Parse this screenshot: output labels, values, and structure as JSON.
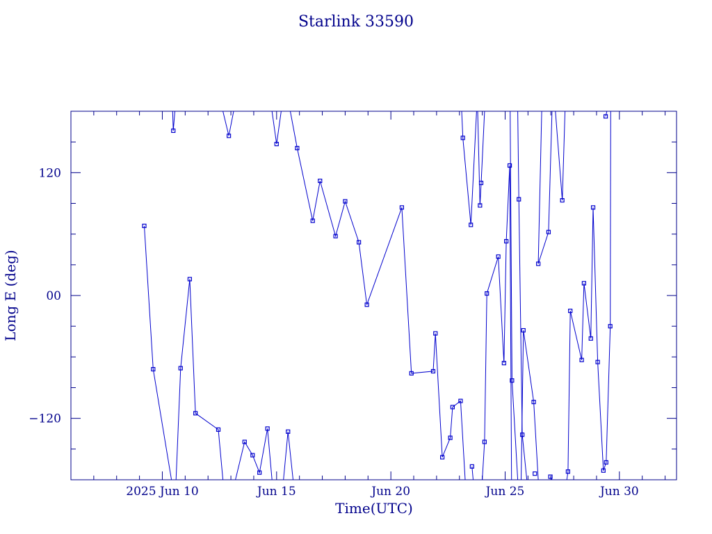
{
  "chart_data": {
    "type": "line",
    "title": "Starlink 33590",
    "xlabel": "Time(UTC)",
    "ylabel": "Long E (deg)",
    "x_units": "days (June 2025)",
    "xlim": [
      6.0,
      32.5
    ],
    "ylim": [
      -180,
      180
    ],
    "x_ticks": [
      {
        "x": 10,
        "label": "2025 Jun 10"
      },
      {
        "x": 15,
        "label": "Jun 15"
      },
      {
        "x": 20,
        "label": "Jun 20"
      },
      {
        "x": 25,
        "label": "Jun 25"
      },
      {
        "x": 30,
        "label": "Jun 30"
      }
    ],
    "y_ticks": [
      {
        "y": 120,
        "label": "120"
      },
      {
        "y": 0,
        "label": "00"
      },
      {
        "y": -120,
        "label": "−120"
      }
    ],
    "color": "#0000cd",
    "series": [
      {
        "values": [
          [
            9.21,
            68
          ],
          [
            9.6,
            -72
          ],
          [
            10.4,
            -180
          ]
        ]
      },
      {
        "values": [
          [
            10.45,
            180
          ],
          [
            10.48,
            161
          ],
          [
            10.55,
            180
          ]
        ]
      },
      {
        "values": [
          [
            10.6,
            -180
          ],
          [
            10.8,
            -71
          ],
          [
            11.2,
            16
          ],
          [
            11.45,
            -115
          ],
          [
            12.45,
            -131
          ],
          [
            12.65,
            -180
          ]
        ]
      },
      {
        "values": [
          [
            12.65,
            180
          ],
          [
            12.91,
            156
          ],
          [
            13.12,
            180
          ]
        ]
      },
      {
        "values": [
          [
            13.2,
            -180
          ],
          [
            13.6,
            -143
          ],
          [
            13.95,
            -156
          ],
          [
            14.25,
            -173
          ],
          [
            14.6,
            -130
          ],
          [
            14.8,
            -180
          ]
        ]
      },
      {
        "values": [
          [
            14.8,
            180
          ],
          [
            15.0,
            148
          ],
          [
            15.2,
            180
          ]
        ]
      },
      {
        "values": [
          [
            15.3,
            -180
          ],
          [
            15.5,
            -133
          ],
          [
            15.72,
            -180
          ]
        ]
      },
      {
        "values": [
          [
            15.6,
            180
          ],
          [
            15.9,
            144
          ],
          [
            16.58,
            73
          ],
          [
            16.9,
            112
          ],
          [
            17.58,
            58
          ],
          [
            18.0,
            92
          ],
          [
            18.6,
            52
          ],
          [
            18.95,
            -9
          ],
          [
            20.48,
            86
          ],
          [
            20.9,
            -76
          ],
          [
            21.85,
            -74
          ],
          [
            21.95,
            -37
          ],
          [
            22.25,
            -158
          ],
          [
            22.6,
            -139
          ],
          [
            22.7,
            -109
          ],
          [
            23.05,
            -103
          ],
          [
            23.25,
            -180
          ]
        ]
      },
      {
        "values": [
          [
            23.1,
            180
          ],
          [
            23.15,
            154
          ],
          [
            23.5,
            69
          ],
          [
            23.75,
            180
          ]
        ]
      },
      {
        "values": [
          [
            23.55,
            -167
          ],
          [
            23.6,
            -180
          ]
        ]
      },
      {
        "values": [
          [
            23.8,
            180
          ],
          [
            23.9,
            88
          ],
          [
            23.95,
            110
          ],
          [
            24.1,
            180
          ]
        ]
      },
      {
        "values": [
          [
            24.0,
            -180
          ],
          [
            24.1,
            -143
          ],
          [
            24.2,
            2
          ],
          [
            24.7,
            38
          ],
          [
            24.95,
            -66
          ],
          [
            25.05,
            53
          ],
          [
            25.2,
            127
          ],
          [
            25.28,
            -180
          ]
        ]
      },
      {
        "values": [
          [
            25.22,
            180
          ],
          [
            25.3,
            -83
          ],
          [
            25.55,
            -180
          ]
        ]
      },
      {
        "values": [
          [
            25.55,
            180
          ],
          [
            25.6,
            94
          ],
          [
            25.75,
            -136
          ],
          [
            25.95,
            -180
          ]
        ]
      },
      {
        "values": [
          [
            25.7,
            -180
          ],
          [
            25.8,
            -34
          ],
          [
            26.25,
            -104
          ],
          [
            26.45,
            -180
          ]
        ]
      },
      {
        "values": [
          [
            26.6,
            180
          ],
          [
            26.45,
            31
          ],
          [
            26.9,
            62
          ],
          [
            27.05,
            180
          ]
        ]
      },
      {
        "values": [
          [
            26.98,
            -177
          ],
          [
            27.05,
            -180
          ]
        ]
      },
      {
        "values": [
          [
            27.2,
            180
          ],
          [
            27.5,
            93
          ],
          [
            27.62,
            180
          ]
        ]
      },
      {
        "values": [
          [
            27.7,
            -180
          ],
          [
            27.75,
            -172
          ],
          [
            27.85,
            -15
          ],
          [
            28.35,
            -63
          ],
          [
            28.45,
            12
          ],
          [
            28.75,
            -42
          ],
          [
            28.85,
            86
          ],
          [
            29.05,
            -65
          ],
          [
            29.3,
            -171
          ],
          [
            29.42,
            -163
          ],
          [
            29.6,
            -30
          ],
          [
            29.62,
            180
          ]
        ]
      },
      {
        "values": [
          [
            29.4,
            175
          ],
          [
            29.45,
            180
          ]
        ]
      },
      {
        "values": [
          [
            26.3,
            -174
          ]
        ]
      }
    ]
  }
}
